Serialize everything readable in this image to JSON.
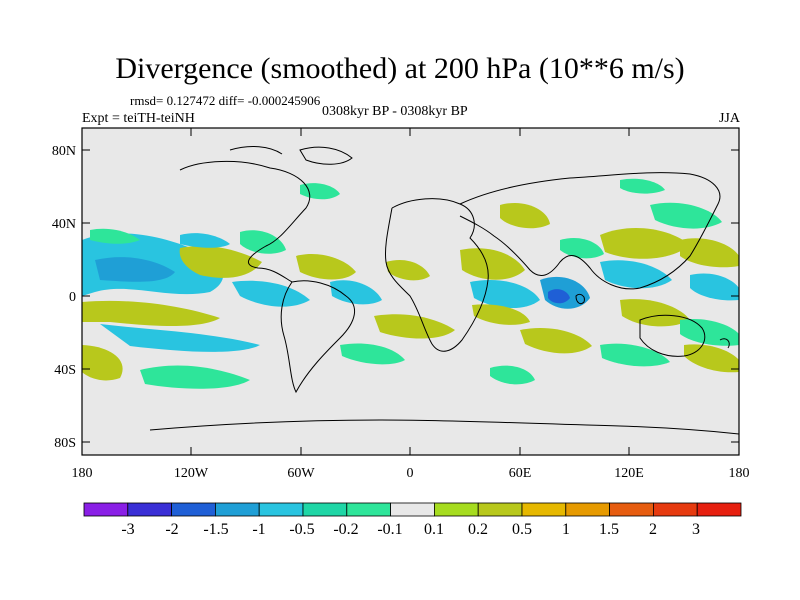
{
  "title": "Divergence (smoothed) at 200 hPa (10**6 m/s)",
  "stats": "rmsd= 0.127472 diff= -0.000245906",
  "experiment": "Expt = teiTH-teiNH",
  "period": "0308kyr BP - 0308kyr BP",
  "season": "JJA",
  "lat_labels": [
    "80N",
    "40N",
    "0",
    "40S",
    "80S"
  ],
  "lon_labels": [
    "180",
    "120W",
    "60W",
    "0",
    "60E",
    "120E",
    "180"
  ],
  "colorbar": {
    "labels": [
      "-3",
      "-2",
      "-1.5",
      "-1",
      "-0.5",
      "-0.2",
      "-0.1",
      "0.1",
      "0.2",
      "0.5",
      "1",
      "1.5",
      "2",
      "3"
    ],
    "colors": [
      "#8a1fe6",
      "#3a2fd6",
      "#1f5fd6",
      "#1f9fd6",
      "#29c4e0",
      "#1fd6a6",
      "#2ee59a",
      "#e8e8e8",
      "#a6dc1f",
      "#b8c81c",
      "#e6b800",
      "#e69a00",
      "#e65c0f",
      "#e63a0f",
      "#e61f0f"
    ]
  },
  "colors": {
    "background": "#e8e8e8",
    "cyan": "#29c4e0",
    "blue": "#1f9fd6",
    "green": "#2ee59a",
    "olive": "#b8c81c",
    "lime": "#a6dc1f",
    "coast": "#000000"
  }
}
